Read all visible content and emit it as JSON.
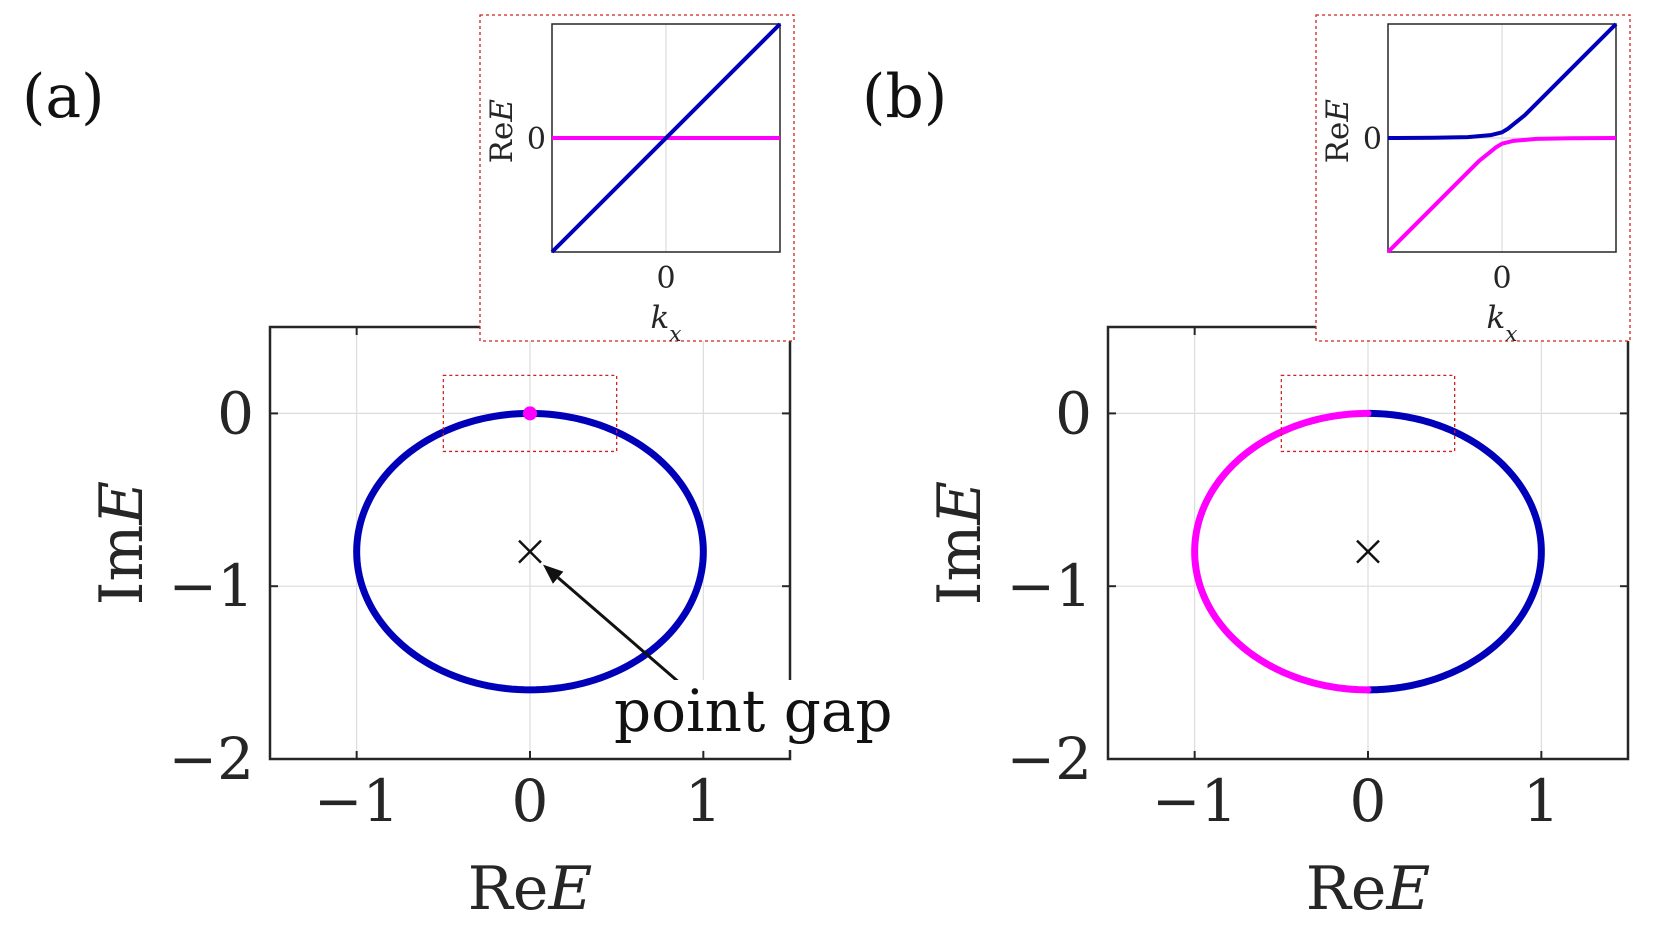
{
  "colors": {
    "band_blue": "#0000b8",
    "band_magenta": "#ff00ff",
    "axes": "#262626",
    "grid": "#dcdcdc",
    "frame_red": "#d02020"
  },
  "chart_data": [
    {
      "panel_label": "(a)",
      "type": "line",
      "xlabel_prefix": "Re",
      "xlabel_var": "E",
      "ylabel_prefix": "Im",
      "ylabel_var": "E",
      "xlim": [
        -1.5,
        1.5
      ],
      "ylim": [
        -2,
        0.5
      ],
      "x_ticks": [
        -1,
        0,
        1
      ],
      "x_tick_labels": [
        "−1",
        "0",
        "1"
      ],
      "y_ticks": [
        -2,
        -1,
        0
      ],
      "y_tick_labels": [
        "−2",
        "−1",
        "0"
      ],
      "grid": true,
      "spectrum": {
        "center": [
          0,
          -0.8
        ],
        "radius_re": 1.0,
        "radius_im": 0.8
      },
      "series": [
        {
          "color": "blue",
          "theta_range_deg": [
            0,
            360
          ]
        }
      ],
      "marker_dot": {
        "x": 0,
        "y": 0,
        "color": "magenta"
      },
      "point_gap_marker": {
        "x": 0,
        "y": -0.8,
        "symbol": "×"
      },
      "annotation": {
        "text": "point gap",
        "arrow_to": [
          0,
          -0.8
        ]
      },
      "zoom_box": {
        "x": [
          -0.5,
          0.5
        ],
        "y": [
          -0.22,
          0.22
        ]
      },
      "inset": {
        "xlabel_var": "k",
        "xlabel_sub": "x",
        "ylabel_prefix": "Re",
        "ylabel_var": "E",
        "x_tick_label": "0",
        "y_tick_label": "0",
        "xlim": [
          -1,
          1
        ],
        "ylim": [
          -1,
          1
        ],
        "series": [
          {
            "color": "magenta",
            "x": [
              -1,
              1
            ],
            "y": [
              0,
              0
            ]
          },
          {
            "color": "blue",
            "x": [
              -1,
              1
            ],
            "y": [
              -1,
              1
            ]
          }
        ]
      }
    },
    {
      "panel_label": "(b)",
      "type": "line",
      "xlabel_prefix": "Re",
      "xlabel_var": "E",
      "ylabel_prefix": "Im",
      "ylabel_var": "E",
      "xlim": [
        -1.5,
        1.5
      ],
      "ylim": [
        -2,
        0.5
      ],
      "x_ticks": [
        -1,
        0,
        1
      ],
      "x_tick_labels": [
        "−1",
        "0",
        "1"
      ],
      "y_ticks": [
        -2,
        -1,
        0
      ],
      "y_tick_labels": [
        "−2",
        "−1",
        "0"
      ],
      "grid": true,
      "spectrum": {
        "center": [
          0,
          -0.8
        ],
        "radius_re": 1.0,
        "radius_im": 0.8
      },
      "series": [
        {
          "color": "blue",
          "theta_range_deg": [
            -90,
            90
          ]
        },
        {
          "color": "magenta",
          "theta_range_deg": [
            90,
            270
          ]
        }
      ],
      "point_gap_marker": {
        "x": 0,
        "y": -0.8,
        "symbol": "×"
      },
      "zoom_box": {
        "x": [
          -0.5,
          0.5
        ],
        "y": [
          -0.22,
          0.22
        ]
      },
      "inset": {
        "xlabel_var": "k",
        "xlabel_sub": "x",
        "ylabel_prefix": "Re",
        "ylabel_var": "E",
        "x_tick_label": "0",
        "y_tick_label": "0",
        "xlim": [
          -1,
          1
        ],
        "ylim": [
          -1,
          1
        ],
        "series": [
          {
            "color": "blue",
            "x": [
              -1,
              -0.6,
              -0.3,
              -0.1,
              0.0,
              0.05,
              0.1,
              0.2,
              0.4,
              0.7,
              1.0
            ],
            "y": [
              0,
              0.002,
              0.008,
              0.025,
              0.05,
              0.08,
              0.12,
              0.2,
              0.4,
              0.7,
              1.0
            ]
          },
          {
            "color": "magenta",
            "x": [
              -1,
              -0.7,
              -0.4,
              -0.2,
              -0.1,
              -0.05,
              0.0,
              0.1,
              0.3,
              0.6,
              1.0
            ],
            "y": [
              -1.0,
              -0.7,
              -0.4,
              -0.2,
              -0.12,
              -0.08,
              -0.05,
              -0.025,
              -0.008,
              -0.002,
              0
            ]
          }
        ]
      }
    }
  ]
}
